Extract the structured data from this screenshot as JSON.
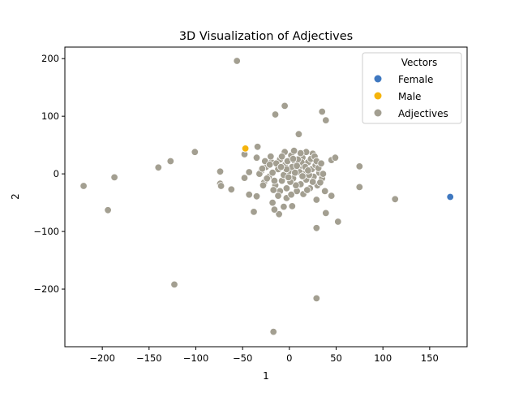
{
  "chart_data": {
    "type": "scatter",
    "title": "3D Visualization of Adjectives",
    "xlabel": "1",
    "ylabel": "2",
    "xlim": [
      -240,
      190
    ],
    "ylim": [
      -300,
      220
    ],
    "grid": false,
    "x_ticks": [
      -200,
      -150,
      -100,
      -50,
      0,
      50,
      100,
      150
    ],
    "x_tick_labels": [
      "−200",
      "−150",
      "−100",
      "−50",
      "0",
      "50",
      "100",
      "150"
    ],
    "y_ticks": [
      200,
      100,
      0,
      -100,
      -200
    ],
    "y_tick_labels": [
      "200",
      "100",
      "0",
      "−100",
      "−200"
    ],
    "legend": {
      "title": "Vectors",
      "position": "top-right",
      "entries": [
        "Female",
        "Male",
        "Adjectives"
      ]
    },
    "colors": {
      "Female": "#3f78c0",
      "Male": "#f5b40c",
      "Adjectives": "#a39f91"
    },
    "series": [
      {
        "name": "Female",
        "points": [
          [
            172,
            -40
          ]
        ]
      },
      {
        "name": "Male",
        "points": [
          [
            -47,
            44
          ]
        ]
      },
      {
        "name": "Adjectives",
        "points": [
          [
            -56,
            196
          ],
          [
            -5,
            118
          ],
          [
            -15,
            103
          ],
          [
            35,
            108
          ],
          [
            39,
            93
          ],
          [
            10,
            69
          ],
          [
            -101,
            38
          ],
          [
            -127,
            22
          ],
          [
            -140,
            11
          ],
          [
            -187,
            -6
          ],
          [
            -220,
            -21
          ],
          [
            -194,
            -63
          ],
          [
            -123,
            -192
          ],
          [
            -17,
            -274
          ],
          [
            29,
            -216
          ],
          [
            -74,
            4
          ],
          [
            -74,
            -17
          ],
          [
            -73,
            -21
          ],
          [
            -62,
            -27
          ],
          [
            -48,
            34
          ],
          [
            -48,
            -7
          ],
          [
            -43,
            3
          ],
          [
            -43,
            -36
          ],
          [
            -38,
            -66
          ],
          [
            -35,
            28
          ],
          [
            -34,
            47
          ],
          [
            -35,
            -39
          ],
          [
            75,
            13
          ],
          [
            75,
            -23
          ],
          [
            113,
            -44
          ],
          [
            52,
            -83
          ],
          [
            39,
            -68
          ],
          [
            29,
            -94
          ],
          [
            45,
            -38
          ],
          [
            29,
            -45
          ],
          [
            45,
            24
          ],
          [
            49,
            28
          ],
          [
            -6,
            -57
          ],
          [
            -18,
            -50
          ],
          [
            -11,
            -70
          ],
          [
            -16,
            -62
          ],
          [
            -3,
            -42
          ],
          [
            3,
            -56
          ],
          [
            -30,
            5
          ],
          [
            -25,
            12
          ],
          [
            -22,
            -5
          ],
          [
            -27,
            -15
          ],
          [
            -19,
            20
          ],
          [
            -15,
            -20
          ],
          [
            -12,
            8
          ],
          [
            -10,
            25
          ],
          [
            -8,
            -12
          ],
          [
            -5,
            15
          ],
          [
            -3,
            -25
          ],
          [
            0,
            5
          ],
          [
            2,
            32
          ],
          [
            4,
            -8
          ],
          [
            6,
            18
          ],
          [
            8,
            -30
          ],
          [
            10,
            10
          ],
          [
            12,
            -18
          ],
          [
            14,
            28
          ],
          [
            16,
            0
          ],
          [
            18,
            -10
          ],
          [
            20,
            20
          ],
          [
            22,
            -25
          ],
          [
            24,
            8
          ],
          [
            26,
            -5
          ],
          [
            28,
            15
          ],
          [
            30,
            -20
          ],
          [
            32,
            2
          ],
          [
            35,
            -8
          ],
          [
            38,
            -30
          ],
          [
            25,
            35
          ],
          [
            18,
            38
          ],
          [
            -5,
            38
          ],
          [
            -20,
            30
          ],
          [
            -28,
            -20
          ],
          [
            -32,
            0
          ],
          [
            -10,
            -30
          ],
          [
            5,
            40
          ],
          [
            15,
            -35
          ],
          [
            -18,
            2
          ],
          [
            -14,
            18
          ],
          [
            -6,
            -2
          ],
          [
            -2,
            22
          ],
          [
            3,
            12
          ],
          [
            7,
            -20
          ],
          [
            11,
            3
          ],
          [
            13,
            20
          ],
          [
            17,
            12
          ],
          [
            21,
            -2
          ],
          [
            23,
            26
          ],
          [
            27,
            30
          ],
          [
            31,
            10
          ],
          [
            33,
            -15
          ],
          [
            -24,
            -8
          ],
          [
            -26,
            22
          ],
          [
            -16,
            -12
          ],
          [
            -8,
            30
          ],
          [
            1,
            -14
          ],
          [
            9,
            25
          ],
          [
            19,
            -28
          ],
          [
            -12,
            -38
          ],
          [
            6,
            2
          ],
          [
            -3,
            8
          ],
          [
            12,
            36
          ],
          [
            -21,
            16
          ],
          [
            -9,
            12
          ],
          [
            4,
            26
          ],
          [
            14,
            -4
          ],
          [
            25,
            -14
          ],
          [
            29,
            22
          ],
          [
            36,
            0
          ],
          [
            -29,
            9
          ],
          [
            -1,
            -6
          ],
          [
            8,
            14
          ],
          [
            20,
            6
          ],
          [
            -17,
            -28
          ],
          [
            2,
            -36
          ],
          [
            34,
            18
          ]
        ]
      }
    ]
  }
}
